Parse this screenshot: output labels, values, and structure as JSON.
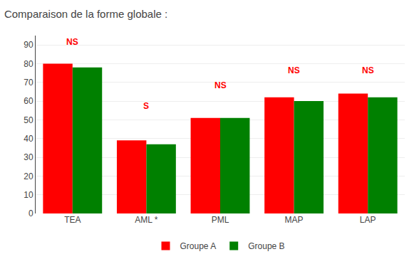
{
  "chart_data": {
    "type": "bar",
    "title": "Comparaison de la forme globale :",
    "categories": [
      "TEA",
      "AML *",
      "PML",
      "MAP",
      "LAP"
    ],
    "series": [
      {
        "name": "Groupe A",
        "color": "#ff0000",
        "values": [
          80,
          39,
          51,
          62,
          64
        ]
      },
      {
        "name": "Groupe B",
        "color": "#008000",
        "values": [
          78,
          37,
          51,
          60,
          62
        ]
      }
    ],
    "annotations": [
      {
        "text": "NS",
        "x": "TEA",
        "y": 88,
        "color": "#ff0000"
      },
      {
        "text": "S",
        "x": "AML *",
        "y": 54,
        "color": "#ff0000"
      },
      {
        "text": "NS",
        "x": "PML",
        "y": 65,
        "color": "#ff0000"
      },
      {
        "text": "NS",
        "x": "MAP",
        "y": 73,
        "color": "#ff0000"
      },
      {
        "text": "NS",
        "x": "LAP",
        "y": 73,
        "color": "#ff0000"
      }
    ],
    "ylim": [
      0,
      95
    ],
    "yticks": [
      0,
      10,
      20,
      30,
      40,
      50,
      60,
      70,
      80,
      90
    ],
    "grid": true,
    "legend": "bottom"
  }
}
